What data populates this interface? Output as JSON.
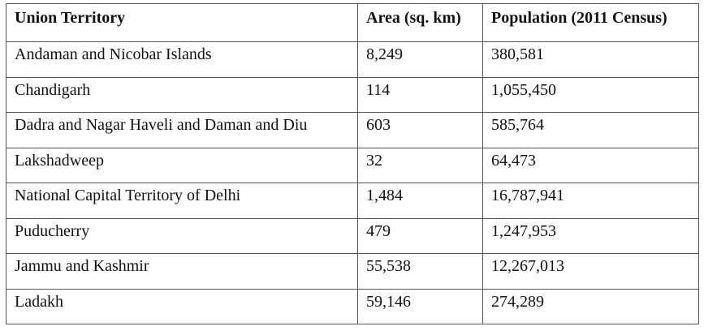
{
  "table": {
    "header": [
      "Union Territory",
      "Area (sq. km)",
      "Population (2011 Census)"
    ],
    "rows": [
      [
        "Andaman and Nicobar Islands",
        "8,249",
        "380,581"
      ],
      [
        "Chandigarh",
        "114",
        "1,055,450"
      ],
      [
        "Dadra and Nagar Haveli and Daman and Diu",
        "603",
        "585,764"
      ],
      [
        "Lakshadweep",
        "32",
        "64,473"
      ],
      [
        "National Capital Territory of Delhi",
        "1,484",
        "16,787,941"
      ],
      [
        "Puducherry",
        "479",
        "1,247,953"
      ],
      [
        "Jammu and Kashmir",
        "55,538",
        "12,267,013"
      ],
      [
        "Ladakh",
        "59,146",
        "274,289"
      ]
    ]
  }
}
